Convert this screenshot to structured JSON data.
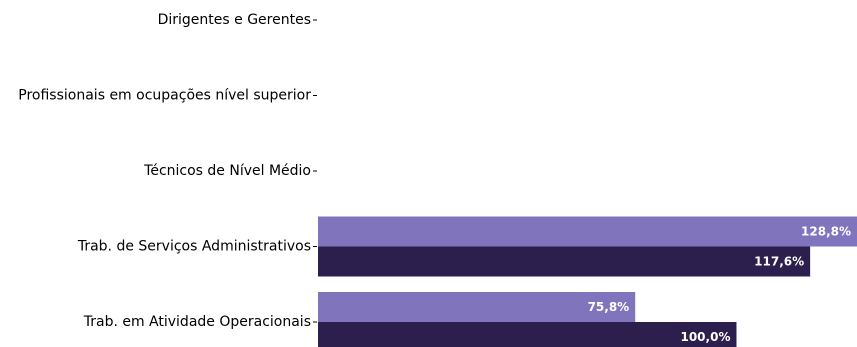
{
  "chart_data": {
    "type": "bar",
    "orientation": "horizontal",
    "categories": [
      "Dirigentes e Gerentes",
      "Profissionais em ocupações nível superior",
      "Técnicos de Nível Médio",
      "Trab. de Serviços Administrativos",
      "Trab. em Atividade Operacionais"
    ],
    "series": [
      {
        "color": "#8075bd",
        "values": [
          null,
          null,
          null,
          128.8,
          75.8
        ],
        "labels": [
          "",
          "",
          "",
          "128,8%",
          "75,8%"
        ]
      },
      {
        "color": "#2c1f4d",
        "values": [
          null,
          null,
          null,
          117.6,
          100.0
        ],
        "labels": [
          "",
          "",
          "",
          "117,6%",
          "100,0%"
        ]
      }
    ],
    "xlim": [
      0,
      128.8
    ],
    "grid": false,
    "legend": "none"
  }
}
